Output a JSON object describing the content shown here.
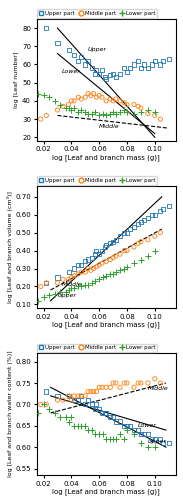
{
  "chart_data": [
    {
      "type": "scatter",
      "xlabel": "log [Leaf and branch mass (g)]",
      "ylabel": "log [Leaf number]",
      "xlim": [
        0.015,
        0.115
      ],
      "ylim": [
        18,
        85
      ],
      "xticks": [
        0.02,
        0.04,
        0.06,
        0.08,
        {
          "value": 0.1,
          "label": "0.10"
        }
      ],
      "yticks": [
        20,
        30,
        40,
        50,
        60,
        70,
        80
      ],
      "legend": "upper left",
      "series": [
        {
          "name": "Upper part",
          "marker": "square",
          "x": [
            0.022,
            0.03,
            0.038,
            0.042,
            0.045,
            0.047,
            0.05,
            0.052,
            0.055,
            0.057,
            0.058,
            0.06,
            0.062,
            0.064,
            0.065,
            0.068,
            0.07,
            0.072,
            0.075,
            0.078,
            0.08,
            0.082,
            0.085,
            0.088,
            0.09,
            0.092,
            0.095,
            0.098,
            0.1,
            0.104,
            0.106,
            0.11
          ],
          "values": [
            80,
            72,
            68,
            65,
            62,
            64,
            60,
            62,
            58,
            55,
            57,
            55,
            57,
            53,
            52,
            54,
            55,
            53,
            55,
            58,
            56,
            58,
            60,
            62,
            58,
            60,
            58,
            60,
            62,
            60,
            62,
            63
          ]
        },
        {
          "name": "Middle part",
          "marker": "circle",
          "x": [
            0.018,
            0.022,
            0.03,
            0.034,
            0.038,
            0.04,
            0.042,
            0.045,
            0.047,
            0.05,
            0.052,
            0.054,
            0.056,
            0.058,
            0.06,
            0.062,
            0.065,
            0.068,
            0.07,
            0.072,
            0.075,
            0.078,
            0.08,
            0.085,
            0.088,
            0.09,
            0.095,
            0.1,
            0.104
          ],
          "values": [
            30,
            32,
            35,
            37,
            38,
            40,
            40,
            42,
            41,
            42,
            44,
            43,
            44,
            42,
            43,
            42,
            40,
            41,
            40,
            41,
            40,
            39,
            38,
            38,
            37,
            36,
            33,
            32,
            30
          ]
        },
        {
          "name": "Lower part",
          "marker": "plus",
          "x": [
            0.016,
            0.02,
            0.024,
            0.028,
            0.032,
            0.036,
            0.038,
            0.04,
            0.042,
            0.045,
            0.047,
            0.05,
            0.052,
            0.055,
            0.057,
            0.06,
            0.063,
            0.065,
            0.068,
            0.07,
            0.072,
            0.075,
            0.078,
            0.08,
            0.085,
            0.09,
            0.095,
            0.1
          ],
          "values": [
            44,
            43,
            42,
            40,
            38,
            36,
            36,
            35,
            36,
            34,
            35,
            34,
            33,
            33,
            34,
            32,
            33,
            32,
            33,
            34,
            33,
            34,
            35,
            34,
            33,
            34,
            35,
            34
          ]
        }
      ],
      "lines": [
        {
          "x": [
            0.03,
            0.1
          ],
          "values": [
            80,
            20
          ],
          "line_style": "solid",
          "color": "black",
          "annotation": {
            "text": "Upper",
            "x": 0.052,
            "y": 68
          }
        },
        {
          "x": [
            0.03,
            0.1
          ],
          "values": [
            66,
            22
          ],
          "line_style": "solid",
          "color": "black",
          "annotation": {
            "text": "Lower",
            "x": 0.033,
            "y": 56
          }
        },
        {
          "x": [
            0.03,
            0.11
          ],
          "values": [
            32,
            25
          ],
          "line_style": "dashed",
          "color": "black",
          "annotation": {
            "text": "Middle",
            "x": 0.06,
            "y": 26
          }
        }
      ]
    },
    {
      "type": "scatter",
      "xlabel": "log [Leaf and branch mass (g)]",
      "ylabel": "log [Leaf and branch volume (cm³)]",
      "xlim": [
        0.015,
        0.115
      ],
      "ylim": [
        0.08,
        0.76
      ],
      "xticks": [
        0.02,
        0.04,
        0.06,
        0.08,
        {
          "value": 0.1,
          "label": "0.10"
        }
      ],
      "yticks": [
        {
          "value": 0.1,
          "label": "0.10"
        },
        {
          "value": 0.2,
          "label": "0.20"
        },
        {
          "value": 0.3,
          "label": "0.30"
        },
        {
          "value": 0.4,
          "label": "0.40"
        },
        {
          "value": 0.5,
          "label": "0.50"
        },
        {
          "value": 0.6,
          "label": "0.60"
        },
        {
          "value": 0.7,
          "label": "0.70"
        }
      ],
      "legend": "upper left",
      "series": [
        {
          "name": "Upper part",
          "marker": "square",
          "x": [
            0.022,
            0.03,
            0.038,
            0.042,
            0.045,
            0.047,
            0.05,
            0.052,
            0.055,
            0.057,
            0.058,
            0.06,
            0.062,
            0.064,
            0.065,
            0.068,
            0.07,
            0.072,
            0.075,
            0.078,
            0.08,
            0.082,
            0.085,
            0.088,
            0.09,
            0.092,
            0.095,
            0.098,
            0.1,
            0.104,
            0.106,
            0.11
          ],
          "values": [
            0.22,
            0.25,
            0.28,
            0.3,
            0.32,
            0.32,
            0.34,
            0.35,
            0.36,
            0.38,
            0.4,
            0.38,
            0.4,
            0.42,
            0.43,
            0.44,
            0.45,
            0.46,
            0.48,
            0.5,
            0.5,
            0.52,
            0.53,
            0.55,
            0.56,
            0.57,
            0.58,
            0.6,
            0.6,
            0.62,
            0.63,
            0.65
          ]
        },
        {
          "name": "Middle part",
          "marker": "circle",
          "x": [
            0.018,
            0.022,
            0.03,
            0.034,
            0.038,
            0.04,
            0.042,
            0.045,
            0.047,
            0.05,
            0.052,
            0.054,
            0.056,
            0.058,
            0.06,
            0.062,
            0.065,
            0.068,
            0.07,
            0.072,
            0.075,
            0.078,
            0.08,
            0.085,
            0.088,
            0.09,
            0.095,
            0.1,
            0.104
          ],
          "values": [
            0.2,
            0.22,
            0.22,
            0.24,
            0.24,
            0.25,
            0.26,
            0.27,
            0.28,
            0.28,
            0.3,
            0.29,
            0.3,
            0.31,
            0.32,
            0.33,
            0.34,
            0.35,
            0.36,
            0.37,
            0.38,
            0.4,
            0.4,
            0.42,
            0.44,
            0.45,
            0.46,
            0.48,
            0.5
          ]
        },
        {
          "name": "Lower part",
          "marker": "plus",
          "x": [
            0.016,
            0.02,
            0.024,
            0.028,
            0.032,
            0.036,
            0.038,
            0.04,
            0.042,
            0.045,
            0.047,
            0.05,
            0.052,
            0.055,
            0.057,
            0.06,
            0.063,
            0.065,
            0.068,
            0.07,
            0.072,
            0.075,
            0.078,
            0.08,
            0.085,
            0.09,
            0.095,
            0.1
          ],
          "values": [
            0.12,
            0.14,
            0.15,
            0.16,
            0.17,
            0.17,
            0.18,
            0.19,
            0.19,
            0.2,
            0.2,
            0.21,
            0.21,
            0.22,
            0.23,
            0.24,
            0.25,
            0.26,
            0.27,
            0.27,
            0.28,
            0.29,
            0.3,
            0.31,
            0.33,
            0.35,
            0.37,
            0.4
          ]
        }
      ],
      "lines": [
        {
          "x": [
            0.025,
            0.105
          ],
          "values": [
            0.12,
            0.7
          ],
          "line_style": "solid",
          "color": "black",
          "annotation": {
            "text": "Upper",
            "x": 0.03,
            "y": 0.148
          }
        },
        {
          "x": [
            0.025,
            0.105
          ],
          "values": [
            0.18,
            0.52
          ],
          "line_style": "dashed",
          "color": "black",
          "annotation": {
            "text": "Middle",
            "x": 0.033,
            "y": 0.213
          }
        }
      ]
    },
    {
      "type": "scatter",
      "xlabel": "log [Leaf and branch mass (g)]",
      "ylabel": "log [Leaf and branch water content (%)]",
      "xlim": [
        0.015,
        0.115
      ],
      "ylim": [
        0.535,
        0.82
      ],
      "xticks": [
        0.02,
        0.04,
        0.06,
        0.08,
        {
          "value": 0.1,
          "label": "0.10"
        }
      ],
      "yticks": [
        0.55,
        {
          "value": 0.6,
          "label": "0.60"
        },
        0.65,
        {
          "value": 0.7,
          "label": "0.70"
        },
        0.75,
        {
          "value": 0.8,
          "label": "0.80"
        }
      ],
      "legend": "upper left",
      "series": [
        {
          "name": "Upper part",
          "marker": "square",
          "x": [
            0.022,
            0.03,
            0.038,
            0.042,
            0.045,
            0.047,
            0.05,
            0.052,
            0.055,
            0.057,
            0.058,
            0.06,
            0.062,
            0.064,
            0.065,
            0.068,
            0.07,
            0.072,
            0.075,
            0.078,
            0.08,
            0.082,
            0.085,
            0.088,
            0.09,
            0.092,
            0.095,
            0.098,
            0.1,
            0.104,
            0.106,
            0.11
          ],
          "values": [
            0.73,
            0.72,
            0.72,
            0.71,
            0.71,
            0.72,
            0.7,
            0.71,
            0.7,
            0.69,
            0.7,
            0.69,
            0.68,
            0.68,
            0.68,
            0.67,
            0.67,
            0.66,
            0.66,
            0.65,
            0.65,
            0.65,
            0.64,
            0.64,
            0.63,
            0.63,
            0.63,
            0.62,
            0.62,
            0.62,
            0.61,
            0.61
          ]
        },
        {
          "name": "Middle part",
          "marker": "circle",
          "x": [
            0.018,
            0.022,
            0.03,
            0.034,
            0.038,
            0.04,
            0.042,
            0.045,
            0.047,
            0.05,
            0.052,
            0.054,
            0.056,
            0.058,
            0.06,
            0.062,
            0.065,
            0.068,
            0.07,
            0.072,
            0.075,
            0.078,
            0.08,
            0.085,
            0.088,
            0.09,
            0.095,
            0.1,
            0.104
          ],
          "values": [
            0.7,
            0.7,
            0.71,
            0.71,
            0.72,
            0.71,
            0.72,
            0.72,
            0.72,
            0.72,
            0.73,
            0.73,
            0.73,
            0.73,
            0.74,
            0.74,
            0.74,
            0.74,
            0.75,
            0.75,
            0.74,
            0.75,
            0.75,
            0.74,
            0.75,
            0.75,
            0.75,
            0.76,
            0.75
          ]
        },
        {
          "name": "Lower part",
          "marker": "plus",
          "x": [
            0.016,
            0.02,
            0.024,
            0.028,
            0.032,
            0.036,
            0.038,
            0.04,
            0.042,
            0.045,
            0.047,
            0.05,
            0.052,
            0.055,
            0.057,
            0.06,
            0.063,
            0.065,
            0.068,
            0.07,
            0.072,
            0.075,
            0.078,
            0.08,
            0.085,
            0.09,
            0.095,
            0.1
          ],
          "values": [
            0.68,
            0.7,
            0.69,
            0.68,
            0.67,
            0.67,
            0.66,
            0.67,
            0.65,
            0.65,
            0.65,
            0.65,
            0.64,
            0.64,
            0.63,
            0.63,
            0.63,
            0.62,
            0.62,
            0.62,
            0.62,
            0.63,
            0.62,
            0.64,
            0.63,
            0.61,
            0.6,
            0.6
          ]
        }
      ],
      "lines": [
        {
          "x": [
            0.025,
            0.108
          ],
          "values": [
            0.74,
            0.6
          ],
          "line_style": "solid",
          "color": "black",
          "annotation": {
            "text": "Upper",
            "x": 0.095,
            "y": 0.614
          }
        },
        {
          "x": [
            0.025,
            0.108
          ],
          "values": [
            0.72,
            0.64
          ],
          "line_style": "solid",
          "color": "black",
          "annotation": {
            "text": "Lower",
            "x": 0.088,
            "y": 0.65
          }
        },
        {
          "x": [
            0.025,
            0.108
          ],
          "values": [
            0.68,
            0.75
          ],
          "line_style": "dashed",
          "color": "black",
          "annotation": {
            "text": "Middle",
            "x": 0.095,
            "y": 0.738
          }
        }
      ]
    }
  ]
}
